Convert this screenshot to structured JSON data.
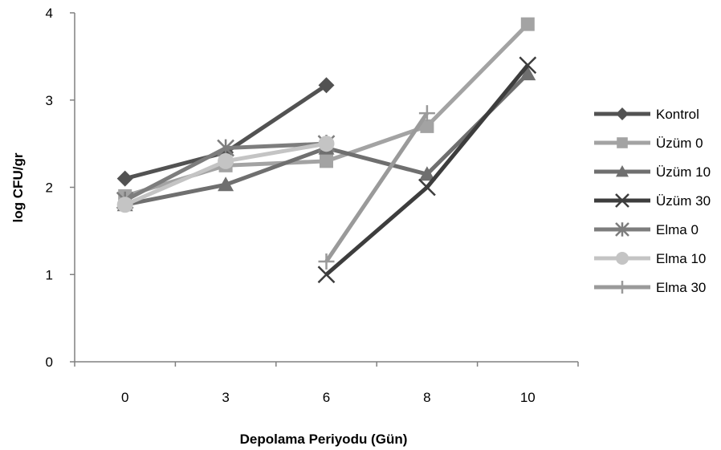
{
  "chart_data": {
    "type": "line",
    "title": "",
    "xlabel": "Depolama Periyodu (Gün)",
    "ylabel": "log CFU/gr",
    "categories": [
      "0",
      "3",
      "6",
      "8",
      "10"
    ],
    "ylim": [
      0,
      4
    ],
    "yticks": [
      "0",
      "1",
      "2",
      "3",
      "4"
    ],
    "grid": false,
    "legend_position": "right",
    "series": [
      {
        "name": "Kontrol",
        "marker": "diamond",
        "color": "#525252",
        "values": [
          2.1,
          2.4,
          3.17,
          null,
          null
        ]
      },
      {
        "name": "Üzüm 0",
        "marker": "square",
        "color": "#a3a3a3",
        "values": [
          1.9,
          2.25,
          2.3,
          2.7,
          3.87
        ]
      },
      {
        "name": "Üzüm 10",
        "marker": "triangle",
        "color": "#6f6f6f",
        "values": [
          1.8,
          2.03,
          2.45,
          2.15,
          3.3
        ]
      },
      {
        "name": "Üzüm 30",
        "marker": "x",
        "color": "#3d3d3d",
        "values": [
          null,
          null,
          1.0,
          2.0,
          3.4
        ]
      },
      {
        "name": "Elma 0",
        "marker": "star",
        "color": "#7d7d7d",
        "values": [
          1.85,
          2.45,
          2.5,
          null,
          null
        ]
      },
      {
        "name": "Elma 10",
        "marker": "circle",
        "color": "#c4c4c4",
        "values": [
          1.8,
          2.3,
          2.5,
          null,
          null
        ]
      },
      {
        "name": "Elma 30",
        "marker": "plus",
        "color": "#9a9a9a",
        "values": [
          null,
          null,
          1.15,
          2.85,
          null
        ]
      }
    ]
  }
}
